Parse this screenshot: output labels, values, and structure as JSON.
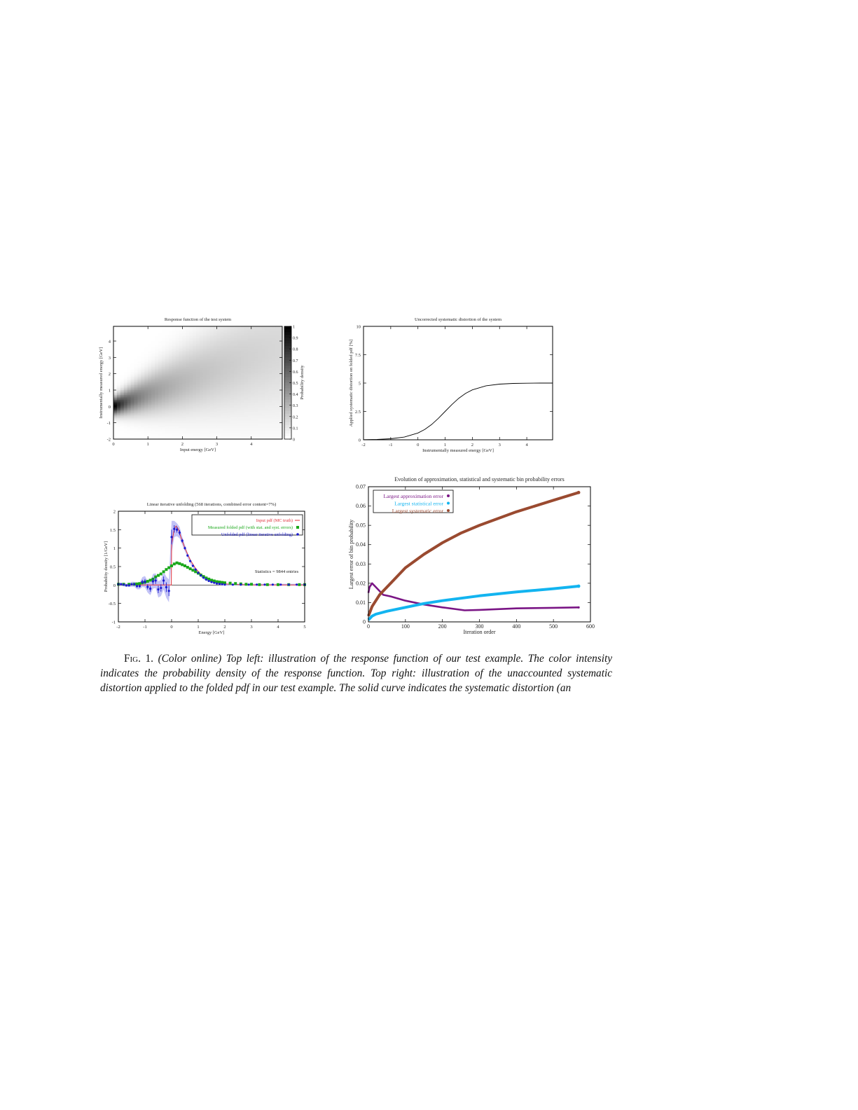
{
  "caption": {
    "label": "Fig. 1.",
    "text": "(Color online) Top left: illustration of the response function of our test example. The color intensity indicates the probability density of the response function. Top right: illustration of the unaccounted systematic distortion applied to the folded pdf in our test example. The solid curve indicates the systematic distortion (an"
  },
  "chart_data": [
    {
      "type": "heatmap",
      "title": "Response function of the test system",
      "xlabel": "Input energy [GeV]",
      "ylabel": "Instrumentally measured energy [GeV]",
      "xlim": [
        0,
        4.9
      ],
      "ylim": [
        -2,
        4.9
      ],
      "xticks": [
        "0",
        "1",
        "2",
        "3",
        "4"
      ],
      "yticks": [
        "-2",
        "-1",
        "0",
        "1",
        "2",
        "3",
        "4"
      ],
      "colorbar": {
        "label": "Probability density",
        "range": [
          0,
          1
        ],
        "ticks": [
          "0",
          "0.1",
          "0.2",
          "0.3",
          "0.4",
          "0.5",
          "0.6",
          "0.7",
          "0.8",
          "0.9",
          "1"
        ],
        "colormap": "white-to-black"
      },
      "grid": false
    },
    {
      "type": "line",
      "title": "Uncorrected systematic distortion of the system",
      "xlabel": "Instrumentally measured energy [GeV]",
      "ylabel": "Applied systematic distortion on folded pdf [%]",
      "xlim": [
        -2,
        4.95
      ],
      "ylim": [
        0,
        10
      ],
      "xticks": [
        "-2",
        "-1",
        "0",
        "1",
        "2",
        "3",
        "4"
      ],
      "yticks": [
        "0",
        "2.5",
        "5",
        "7.5",
        "10"
      ],
      "grid": false,
      "series": [
        {
          "color": "#000000",
          "x": [
            -2,
            -1.5,
            -1,
            -0.5,
            0,
            0.25,
            0.5,
            0.75,
            1,
            1.25,
            1.5,
            1.75,
            2,
            2.5,
            3,
            3.5,
            4,
            4.5,
            4.95
          ],
          "y": [
            0.012,
            0.034,
            0.09,
            0.24,
            0.6,
            0.91,
            1.34,
            1.89,
            2.5,
            3.11,
            3.66,
            4.09,
            4.4,
            4.76,
            4.91,
            4.97,
            4.99,
            5.0,
            5.0
          ]
        }
      ]
    },
    {
      "type": "scatter",
      "title": "Linear iterative unfolding (568 iterations, combined error content=7%)",
      "xlabel": "Energy [GeV]",
      "ylabel": "Probability density [1/GeV]",
      "xlim": [
        -2,
        5
      ],
      "ylim": [
        -1,
        2
      ],
      "xticks": [
        "-2",
        "-1",
        "0",
        "1",
        "2",
        "3",
        "4",
        "5"
      ],
      "yticks": [
        "-1",
        "-0.5",
        "0",
        "0.5",
        "1",
        "1.5",
        "2"
      ],
      "legend_position": "top-right",
      "annotation": "Statistics = 9844 entries",
      "grid": false,
      "series": [
        {
          "name": "Input pdf (MC truth)",
          "color": "#e0303a",
          "marker": "line",
          "x": [
            -2,
            -0.01,
            0,
            0.1,
            0.17,
            0.25,
            0.35,
            0.5,
            0.7,
            0.9,
            1.1,
            1.3,
            1.5,
            1.7,
            2,
            2.5,
            3,
            5
          ],
          "y": [
            0,
            0,
            1.1,
            1.52,
            1.6,
            1.52,
            1.3,
            1.0,
            0.68,
            0.45,
            0.29,
            0.18,
            0.11,
            0.06,
            0.03,
            0.01,
            0,
            0
          ]
        },
        {
          "name": "Measured folded pdf (with stat. and syst. errors)",
          "color": "#1aa81a",
          "marker": "square",
          "x": [
            -2,
            -1.8,
            -1.6,
            -1.4,
            -1.3,
            -1.2,
            -1.1,
            -1,
            -0.9,
            -0.8,
            -0.7,
            -0.6,
            -0.5,
            -0.4,
            -0.3,
            -0.2,
            -0.1,
            0,
            0.1,
            0.2,
            0.3,
            0.4,
            0.5,
            0.6,
            0.7,
            0.8,
            0.9,
            1,
            1.1,
            1.2,
            1.3,
            1.4,
            1.5,
            1.6,
            1.7,
            1.8,
            1.9,
            2,
            2.2,
            2.4,
            2.6,
            2.8,
            3,
            3.3,
            3.6,
            4,
            4.4,
            4.8,
            5
          ],
          "y": [
            0.02,
            0.02,
            0.02,
            0.02,
            0.03,
            0.04,
            0.06,
            0.08,
            0.1,
            0.13,
            0.16,
            0.22,
            0.26,
            0.3,
            0.36,
            0.42,
            0.47,
            0.52,
            0.57,
            0.6,
            0.58,
            0.55,
            0.52,
            0.48,
            0.44,
            0.4,
            0.36,
            0.32,
            0.27,
            0.23,
            0.19,
            0.16,
            0.13,
            0.11,
            0.09,
            0.08,
            0.07,
            0.06,
            0.05,
            0.04,
            0.03,
            0.02,
            0.02,
            0.01,
            0.01,
            0.01,
            0.01,
            0.01,
            0.01
          ]
        },
        {
          "name": "Unfolded pdf (linear iterative unfolding)",
          "color": "#1a1ad0",
          "marker": "star",
          "band_color": "#b8b8f4",
          "x": [
            -2,
            -1.9,
            -1.8,
            -1.7,
            -1.6,
            -1.5,
            -1.4,
            -1.3,
            -1.2,
            -1.1,
            -1,
            -0.9,
            -0.8,
            -0.7,
            -0.6,
            -0.5,
            -0.4,
            -0.3,
            -0.2,
            -0.1,
            0,
            0.1,
            0.2,
            0.3,
            0.4,
            0.5,
            0.6,
            0.7,
            0.8,
            0.9,
            1,
            1.1,
            1.2,
            1.3,
            1.4,
            1.5,
            1.6,
            1.7,
            1.8,
            1.9,
            2,
            2.3,
            2.6,
            2.9,
            3.2,
            3.5,
            3.8,
            4.1,
            4.4,
            4.7,
            5
          ],
          "y": [
            0.02,
            0.02,
            0.01,
            -0.01,
            -0.01,
            0.02,
            0.02,
            -0.03,
            -0.03,
            0.08,
            0.09,
            -0.05,
            -0.1,
            0.1,
            0.12,
            -0.12,
            -0.08,
            0.12,
            -0.06,
            -0.16,
            1.3,
            1.52,
            1.5,
            1.42,
            1.2,
            1.0,
            0.8,
            0.65,
            0.52,
            0.42,
            0.33,
            0.26,
            0.2,
            0.15,
            0.11,
            0.08,
            0.06,
            0.04,
            0.03,
            0.02,
            0.01,
            0.01,
            0.01,
            0.01,
            0.01,
            0.01,
            0.01,
            0.01,
            0.01,
            0.01,
            0.01
          ],
          "err": [
            0.02,
            0.02,
            0.02,
            0.02,
            0.02,
            0.03,
            0.03,
            0.04,
            0.04,
            0.06,
            0.07,
            0.07,
            0.08,
            0.09,
            0.09,
            0.1,
            0.1,
            0.11,
            0.13,
            0.14,
            0.2,
            0.1,
            0.08,
            0.07,
            0.05,
            0.04,
            0.03,
            0.03,
            0.02,
            0.02,
            0.02,
            0.02,
            0.02,
            0.02,
            0.01,
            0.01,
            0.01,
            0.01,
            0.01,
            0.01,
            0.01,
            0.01,
            0.01,
            0.01,
            0.01,
            0.01,
            0.01,
            0.01,
            0.01,
            0.01,
            0.01
          ]
        }
      ]
    },
    {
      "type": "line",
      "title": "Evolution of approximation, statistical and systematic bin probability errors",
      "xlabel": "Iteration order",
      "ylabel": "Largest error of bin probability",
      "xlim": [
        0,
        600
      ],
      "ylim": [
        0,
        0.07
      ],
      "xticks": [
        "0",
        "100",
        "200",
        "300",
        "400",
        "500",
        "600"
      ],
      "yticks": [
        "0",
        "0.01",
        "0.02",
        "0.03",
        "0.04",
        "0.05",
        "0.06",
        "0.07"
      ],
      "legend_position": "top-left",
      "grid": false,
      "series": [
        {
          "name": "Largest approximation error",
          "color": "#7a1585",
          "marker": "plus",
          "x": [
            0,
            3,
            10,
            20,
            40,
            60,
            100,
            150,
            200,
            260,
            300,
            400,
            500,
            568
          ],
          "y": [
            0.015,
            0.018,
            0.02,
            0.018,
            0.014,
            0.0132,
            0.011,
            0.009,
            0.0075,
            0.006,
            0.0062,
            0.007,
            0.0073,
            0.0075
          ]
        },
        {
          "name": "Largest statistical error",
          "color": "#12b4f0",
          "marker": "diamond",
          "x": [
            0,
            10,
            20,
            50,
            100,
            150,
            200,
            300,
            400,
            500,
            568
          ],
          "y": [
            0.001,
            0.003,
            0.004,
            0.0055,
            0.0075,
            0.0095,
            0.011,
            0.0135,
            0.0155,
            0.0172,
            0.0185
          ]
        },
        {
          "name": "Largest systematic error",
          "color": "#9a4a30",
          "marker": "triangle-down",
          "x": [
            0,
            10,
            30,
            60,
            100,
            150,
            200,
            250,
            300,
            400,
            500,
            568
          ],
          "y": [
            0.003,
            0.008,
            0.014,
            0.02,
            0.028,
            0.035,
            0.041,
            0.046,
            0.05,
            0.057,
            0.063,
            0.067
          ]
        }
      ]
    }
  ]
}
